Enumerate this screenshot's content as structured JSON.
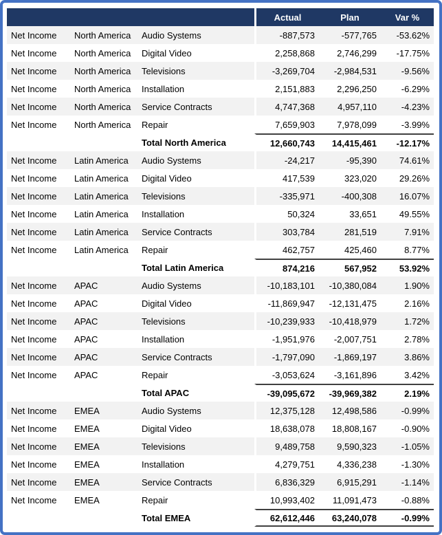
{
  "colors": {
    "header_bg": "#1f3864",
    "frame_border": "#4472c4",
    "stripe": "#f2f2f2",
    "total_rule": "#404040",
    "header_text": "#ffffff"
  },
  "chart_data": {
    "type": "table",
    "measure": "Net Income",
    "header": {
      "actual": "Actual",
      "plan": "Plan",
      "var_pct": "Var %"
    },
    "groups": [
      {
        "region": "North America",
        "rows": [
          {
            "product": "Audio Systems",
            "actual": "-887,573",
            "plan": "-577,765",
            "var_pct": "-53.62%"
          },
          {
            "product": "Digital Video",
            "actual": "2,258,868",
            "plan": "2,746,299",
            "var_pct": "-17.75%"
          },
          {
            "product": "Televisions",
            "actual": "-3,269,704",
            "plan": "-2,984,531",
            "var_pct": "-9.56%"
          },
          {
            "product": "Installation",
            "actual": "2,151,883",
            "plan": "2,296,250",
            "var_pct": "-6.29%"
          },
          {
            "product": "Service Contracts",
            "actual": "4,747,368",
            "plan": "4,957,110",
            "var_pct": "-4.23%"
          },
          {
            "product": "Repair",
            "actual": "7,659,903",
            "plan": "7,978,099",
            "var_pct": "-3.99%"
          }
        ],
        "total": {
          "label": "Total North America",
          "actual": "12,660,743",
          "plan": "14,415,461",
          "var_pct": "-12.17%"
        }
      },
      {
        "region": "Latin America",
        "rows": [
          {
            "product": "Audio Systems",
            "actual": "-24,217",
            "plan": "-95,390",
            "var_pct": "74.61%"
          },
          {
            "product": "Digital Video",
            "actual": "417,539",
            "plan": "323,020",
            "var_pct": "29.26%"
          },
          {
            "product": "Televisions",
            "actual": "-335,971",
            "plan": "-400,308",
            "var_pct": "16.07%"
          },
          {
            "product": "Installation",
            "actual": "50,324",
            "plan": "33,651",
            "var_pct": "49.55%"
          },
          {
            "product": "Service Contracts",
            "actual": "303,784",
            "plan": "281,519",
            "var_pct": "7.91%"
          },
          {
            "product": "Repair",
            "actual": "462,757",
            "plan": "425,460",
            "var_pct": "8.77%"
          }
        ],
        "total": {
          "label": "Total Latin America",
          "actual": "874,216",
          "plan": "567,952",
          "var_pct": "53.92%"
        }
      },
      {
        "region": "APAC",
        "rows": [
          {
            "product": "Audio Systems",
            "actual": "-10,183,101",
            "plan": "-10,380,084",
            "var_pct": "1.90%"
          },
          {
            "product": "Digital Video",
            "actual": "-11,869,947",
            "plan": "-12,131,475",
            "var_pct": "2.16%"
          },
          {
            "product": "Televisions",
            "actual": "-10,239,933",
            "plan": "-10,418,979",
            "var_pct": "1.72%"
          },
          {
            "product": "Installation",
            "actual": "-1,951,976",
            "plan": "-2,007,751",
            "var_pct": "2.78%"
          },
          {
            "product": "Service Contracts",
            "actual": "-1,797,090",
            "plan": "-1,869,197",
            "var_pct": "3.86%"
          },
          {
            "product": "Repair",
            "actual": "-3,053,624",
            "plan": "-3,161,896",
            "var_pct": "3.42%"
          }
        ],
        "total": {
          "label": "Total APAC",
          "actual": "-39,095,672",
          "plan": "-39,969,382",
          "var_pct": "2.19%"
        }
      },
      {
        "region": "EMEA",
        "rows": [
          {
            "product": "Audio Systems",
            "actual": "12,375,128",
            "plan": "12,498,586",
            "var_pct": "-0.99%"
          },
          {
            "product": "Digital Video",
            "actual": "18,638,078",
            "plan": "18,808,167",
            "var_pct": "-0.90%"
          },
          {
            "product": "Televisions",
            "actual": "9,489,758",
            "plan": "9,590,323",
            "var_pct": "-1.05%"
          },
          {
            "product": "Installation",
            "actual": "4,279,751",
            "plan": "4,336,238",
            "var_pct": "-1.30%"
          },
          {
            "product": "Service Contracts",
            "actual": "6,836,329",
            "plan": "6,915,291",
            "var_pct": "-1.14%"
          },
          {
            "product": "Repair",
            "actual": "10,993,402",
            "plan": "11,091,473",
            "var_pct": "-0.88%"
          }
        ],
        "total": {
          "label": "Total EMEA",
          "actual": "62,612,446",
          "plan": "63,240,078",
          "var_pct": "-0.99%"
        }
      }
    ]
  }
}
